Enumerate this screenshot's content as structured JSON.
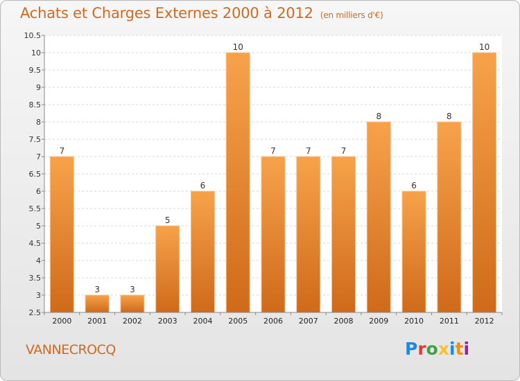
{
  "title": "Achats et Charges Externes 2000 à 2012",
  "unit": "(en milliers d'€)",
  "town": "VANNECROCQ",
  "logo": {
    "text": "Proxiti",
    "colors": [
      "#1e88e5",
      "#e53935",
      "#43a047",
      "#fbc02d",
      "#1e88e5",
      "#fb8c00",
      "#8e24aa"
    ]
  },
  "chart_data": {
    "type": "bar",
    "categories": [
      "2000",
      "2001",
      "2002",
      "2003",
      "2004",
      "2005",
      "2006",
      "2007",
      "2008",
      "2009",
      "2010",
      "2011",
      "2012"
    ],
    "values": [
      7,
      3,
      3,
      5,
      6,
      10,
      7,
      7,
      7,
      8,
      6,
      8,
      10
    ],
    "data_labels": [
      "7",
      "3",
      "3",
      "5",
      "6",
      "10",
      "7",
      "7",
      "7",
      "8",
      "6",
      "8",
      "10"
    ],
    "ylim": [
      2.5,
      10.5
    ],
    "yticks": [
      2.5,
      3,
      3.5,
      4,
      4.5,
      5,
      5.5,
      6,
      6.5,
      7,
      7.5,
      8,
      8.5,
      9,
      9.5,
      10,
      10.5
    ],
    "ytick_labels": [
      "2.5",
      "3",
      "3.5",
      "4",
      "4.5",
      "5",
      "5.5",
      "6",
      "6.5",
      "7",
      "7.5",
      "8",
      "8.5",
      "9",
      "9.5",
      "10",
      "10.5"
    ],
    "grid": true,
    "bar_color_top": "#f7a24b",
    "bar_color_bottom": "#cf6a1a"
  }
}
